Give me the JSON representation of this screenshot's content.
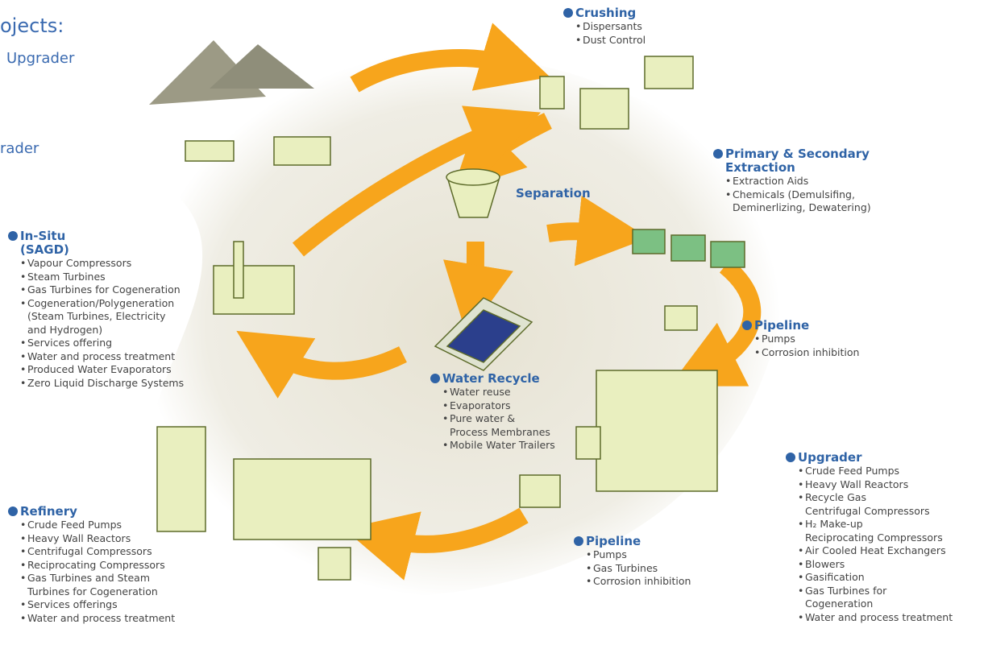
{
  "intro": [
    "ojects:",
    "Upgrader",
    "rader"
  ],
  "sections": [
    {
      "title": [
        "Crushing"
      ],
      "items": [
        [
          "Dispersants"
        ],
        [
          "Dust Control"
        ]
      ]
    },
    {
      "title": [
        "Primary & Secondary",
        "Extraction"
      ],
      "items": [
        [
          "Extraction Aids"
        ],
        [
          "Chemicals (Demulsifing,",
          "Deminerlizing, Dewatering)"
        ]
      ]
    },
    {
      "title": [
        "Separation"
      ],
      "items": []
    },
    {
      "title": [
        "In-Situ",
        "(SAGD)"
      ],
      "items": [
        [
          "Vapour Compressors"
        ],
        [
          "Steam Turbines"
        ],
        [
          "Gas Turbines for Cogeneration"
        ],
        [
          "Cogeneration/Polygeneration",
          "(Steam Turbines, Electricity",
          "and Hydrogen)"
        ],
        [
          "Services offering"
        ],
        [
          "Water and process treatment"
        ],
        [
          "Produced Water Evaporators"
        ],
        [
          "Zero Liquid Discharge Systems"
        ]
      ]
    },
    {
      "title": [
        "Pipeline"
      ],
      "items": [
        [
          "Pumps"
        ],
        [
          "Corrosion inhibition"
        ]
      ]
    },
    {
      "title": [
        "Water Recycle"
      ],
      "items": [
        [
          "Water reuse"
        ],
        [
          "Evaporators"
        ],
        [
          "Pure water &",
          "Process Membranes"
        ],
        [
          "Mobile Water Trailers"
        ]
      ]
    },
    {
      "title": [
        "Upgrader"
      ],
      "items": [
        [
          "Crude Feed Pumps"
        ],
        [
          "Heavy Wall Reactors"
        ],
        [
          "Recycle Gas",
          "Centrifugal Compressors"
        ],
        [
          "H₂ Make-up",
          "Reciprocating Compressors"
        ],
        [
          "Air Cooled Heat Exchangers"
        ],
        [
          "Blowers"
        ],
        [
          "Gasification"
        ],
        [
          "Gas Turbines for",
          "Cogeneration"
        ],
        [
          "Water and process treatment"
        ]
      ]
    },
    {
      "title": [
        "Pipeline"
      ],
      "items": [
        [
          "Pumps"
        ],
        [
          "Gas Turbines"
        ],
        [
          "Corrosion inhibition"
        ]
      ]
    },
    {
      "title": [
        "Refinery"
      ],
      "items": [
        [
          "Crude Feed Pumps"
        ],
        [
          "Heavy Wall Reactors"
        ],
        [
          "Centrifugal Compressors"
        ],
        [
          "Reciprocating Compressors"
        ],
        [
          "Gas Turbines and Steam",
          "Turbines for Cogeneration"
        ],
        [
          "Services offerings"
        ],
        [
          "Water and process treatment"
        ]
      ]
    }
  ]
}
